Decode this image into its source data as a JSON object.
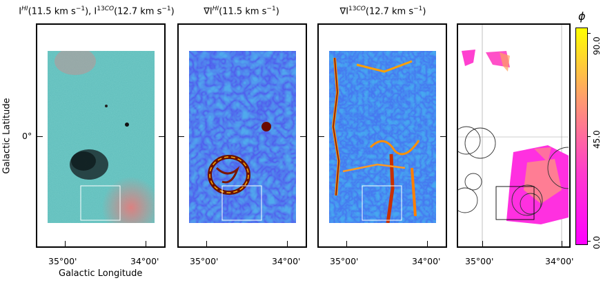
{
  "panels": [
    {
      "title_html": "I<sup><i>HI</i></sup>(11.5 km s<sup>−1</sup>), I<sup>13<i>CO</i></sup>(12.7 km s<sup>−1</sup>)"
    },
    {
      "title_html": "∇I<sup><i>HI</i></sup>(11.5 km s<sup>−1</sup>)"
    },
    {
      "title_html": "∇I<sup>13<i>CO</i></sup>(12.7 km s<sup>−1</sup>)"
    },
    {
      "title_html": ""
    }
  ],
  "xticks": [
    "35°00'",
    "34°00'"
  ],
  "ytick": "0°",
  "xlabel": "Galactic Longitude",
  "ylabel": "Galactic Latitude",
  "colorbar": {
    "symbol": "ϕ",
    "ticks": [
      "90.0",
      "45.0",
      "0.0"
    ],
    "colors": [
      "#ffff00",
      "#ff9a70",
      "#ff3ccc",
      "#ff00ff"
    ]
  }
}
